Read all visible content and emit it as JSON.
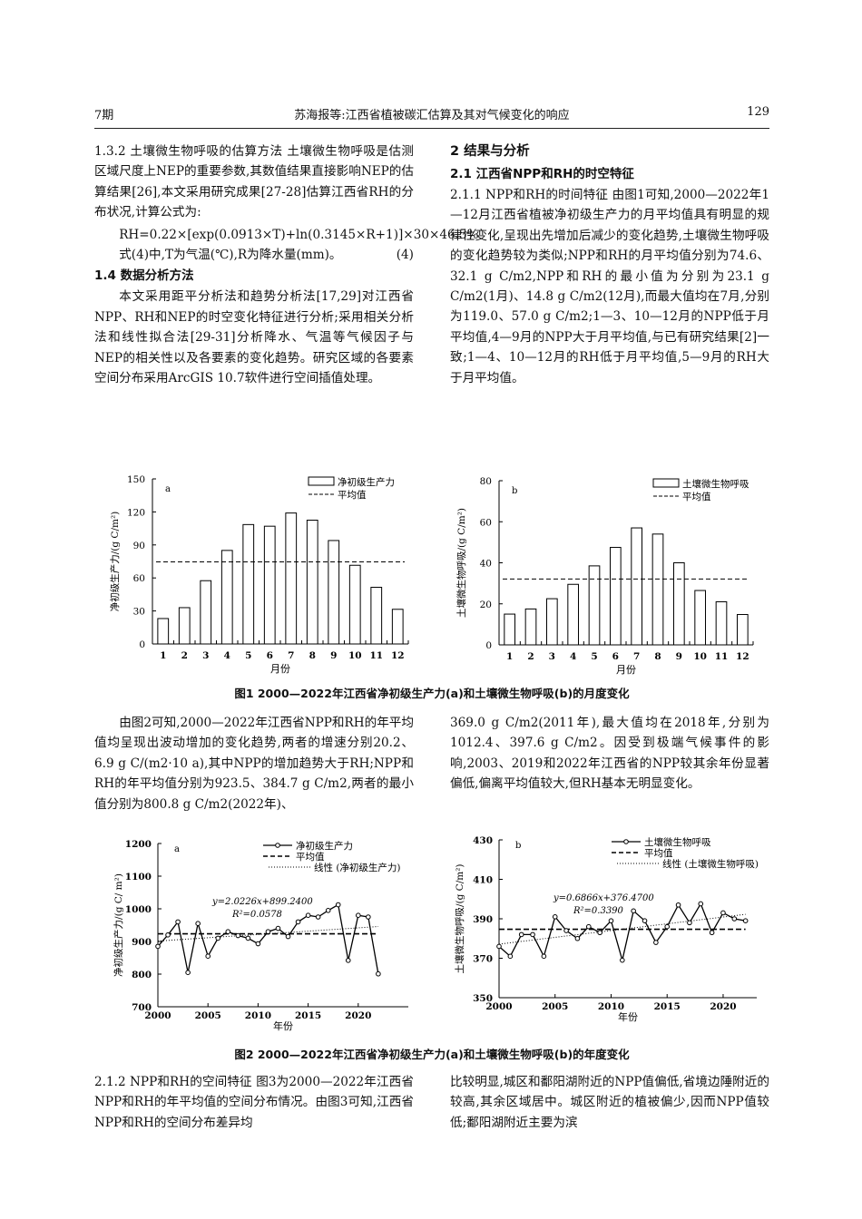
{
  "header": {
    "issue": "7期",
    "title": "苏海报等:江西省植被碳汇估算及其对气候变化的响应",
    "page": "129"
  },
  "left_col": {
    "p1_head": "1.3.2 土壤微生物呼吸的估算方法",
    "p1_body": " 土壤微生物呼吸是估测区域尺度上NEP的重要参数,其数值结果直接影响NEP的估算结果[26],本文采用研究成果[27-28]估算江西省RH的分布状况,计算公式为:",
    "formula": "RH=0.22×[exp(0.0913×T)+ln(0.3145×R+1)]×30×46.5%",
    "formula_no": "(4)",
    "p2": "式(4)中,T为气温(℃),R为降水量(mm)。",
    "h14": "1.4 数据分析方法",
    "p3": "本文采用距平分析法和趋势分析法[17,29]对江西省NPP、RH和NEP的时空变化特征进行分析;采用相关分析法和线性拟合法[29-31]分析降水、气温等气候因子与NEP的相关性以及各要素的变化趋势。研究区域的各要素空间分布采用ArcGIS 10.7软件进行空间插值处理。"
  },
  "right_col": {
    "h2": "2 结果与分析",
    "h21": "2.1 江西省NPP和RH的时空特征",
    "p1_head": "2.1.1 NPP和RH的时间特征",
    "p1_body": " 由图1可知,2000—2022年1—12月江西省植被净初级生产力的月平均值具有明显的规律性变化,呈现出先增加后减少的变化趋势,土壤微生物呼吸的变化趋势较为类似;NPP和RH的月平均值分别为74.6、32.1 g C/m2,NPP和RH的最小值为分别为23.1 g C/m2(1月)、14.8 g C/m2(12月),而最大值均在7月,分别为119.0、57.0 g C/m2;1—3、10—12月的NPP低于月平均值,4—9月的NPP大于月平均值,与已有研究结果[2]一致;1—4、10—12月的RH低于月平均值,5—9月的RH大于月平均值。"
  },
  "mid": {
    "left": "由图2可知,2000—2022年江西省NPP和RH的年平均值均呈现出波动增加的变化趋势,两者的增速分别20.2、6.9 g C/(m2·10 a),其中NPP的增加趋势大于RH;NPP和RH的年平均值分别为923.5、384.7 g C/m2,两者的最小值分别为800.8 g C/m2(2022年)、",
    "right": "369.0 g C/m2(2011年),最大值均在2018年,分别为1012.4、397.6 g C/m2。因受到极端气候事件的影响,2003、2019和2022年江西省的NPP较其余年份显著偏低,偏离平均值较大,但RH基本无明显变化。"
  },
  "bottom": {
    "left": "2.1.2 NPP和RH的空间特征 图3为2000—2022年江西省NPP和RH的年平均值的空间分布情况。由图3可知,江西省NPP和RH的空间分布差异均",
    "right": "比较明显,城区和鄱阳湖附近的NPP值偏低,省境边陲附近的较高,其余区域居中。城区附近的植被偏少,因而NPP值较低;鄱阳湖附近主要为滨"
  },
  "captions": {
    "fig1": "图1 2000—2022年江西省净初级生产力(a)和土壤微生物呼吸(b)的月度变化",
    "fig2": "图2 2000—2022年江西省净初级生产力(a)和土壤微生物呼吸(b)的年度变化"
  },
  "chart_data": [
    {
      "panel": "a",
      "type": "bar",
      "categories": [
        "1",
        "2",
        "3",
        "4",
        "5",
        "6",
        "7",
        "8",
        "9",
        "10",
        "11",
        "12"
      ],
      "values": [
        23.1,
        33,
        57.5,
        85,
        108.5,
        107,
        119.0,
        112.5,
        94,
        71.5,
        51.5,
        31.5
      ],
      "mean": 74.6,
      "ylim": [
        0,
        150
      ],
      "yticks": [
        0,
        30,
        60,
        90,
        120,
        150
      ],
      "xlabel": "月份",
      "ylabel": "净初级生产力/(g C/m²)",
      "legend": [
        "净初级生产力",
        "平均值"
      ],
      "legend_position": "top-right"
    },
    {
      "panel": "b",
      "type": "bar",
      "categories": [
        "1",
        "2",
        "3",
        "4",
        "5",
        "6",
        "7",
        "8",
        "9",
        "10",
        "11",
        "12"
      ],
      "values": [
        15,
        17.5,
        22.5,
        29.5,
        38.5,
        47.5,
        57.0,
        54,
        40,
        26.5,
        21,
        14.8
      ],
      "mean": 32.1,
      "ylim": [
        0,
        80
      ],
      "yticks": [
        0,
        20,
        40,
        60,
        80
      ],
      "xlabel": "月份",
      "ylabel": "土壤微生物呼吸/(g C/m²)",
      "legend": [
        "土壤微生物呼吸",
        "平均值"
      ],
      "legend_position": "top-right"
    },
    {
      "panel": "a",
      "type": "line",
      "x": [
        2000,
        2001,
        2002,
        2003,
        2004,
        2005,
        2006,
        2007,
        2008,
        2009,
        2010,
        2011,
        2012,
        2013,
        2014,
        2015,
        2016,
        2017,
        2018,
        2019,
        2020,
        2021,
        2022
      ],
      "values": [
        885,
        920,
        960,
        805,
        955,
        855,
        910,
        930,
        918,
        910,
        893,
        930,
        940,
        915,
        960,
        980,
        975,
        995,
        1012.4,
        842,
        980,
        975,
        800.8
      ],
      "mean": 923.5,
      "trend": {
        "slope": 2.0226,
        "intercept": 899.24
      },
      "equation": "y=2.0226x+899.2400",
      "r2": "R²=0.0578",
      "xlim": [
        2000,
        2025
      ],
      "xticks": [
        2000,
        2005,
        2010,
        2015,
        2020
      ],
      "ylim": [
        700,
        1200
      ],
      "yticks": [
        700,
        800,
        900,
        1000,
        1100,
        1200
      ],
      "xlabel": "年份",
      "ylabel": "净初级生产力/(g C/ m²)",
      "legend": [
        "净初级生产力",
        "平均值",
        "线性 (净初级生产力)"
      ],
      "legend_position": "top-right"
    },
    {
      "panel": "b",
      "type": "line",
      "x": [
        2000,
        2001,
        2002,
        2003,
        2004,
        2005,
        2006,
        2007,
        2008,
        2009,
        2010,
        2011,
        2012,
        2013,
        2014,
        2015,
        2016,
        2017,
        2018,
        2019,
        2020,
        2021,
        2022
      ],
      "values": [
        376,
        371,
        382,
        382,
        371,
        391,
        384,
        380,
        386,
        383,
        389,
        369.0,
        394,
        389,
        378,
        386,
        397,
        388,
        397.6,
        383,
        393,
        390,
        389
      ],
      "mean": 384.7,
      "trend": {
        "slope": 0.6866,
        "intercept": 376.47
      },
      "equation": "y=0.6866x+376.4700",
      "r2": "R²=0.3390",
      "xlim": [
        2000,
        2023
      ],
      "xticks": [
        2000,
        2005,
        2010,
        2015,
        2020
      ],
      "ylim": [
        350,
        430
      ],
      "yticks": [
        350,
        370,
        390,
        410,
        430
      ],
      "xlabel": "年份",
      "ylabel": "土壤微生物呼吸/(g C/m²)",
      "legend": [
        "土壤微生物呼吸",
        "平均值",
        "线性 (土壤微生物呼吸)"
      ],
      "legend_position": "top-right"
    }
  ]
}
